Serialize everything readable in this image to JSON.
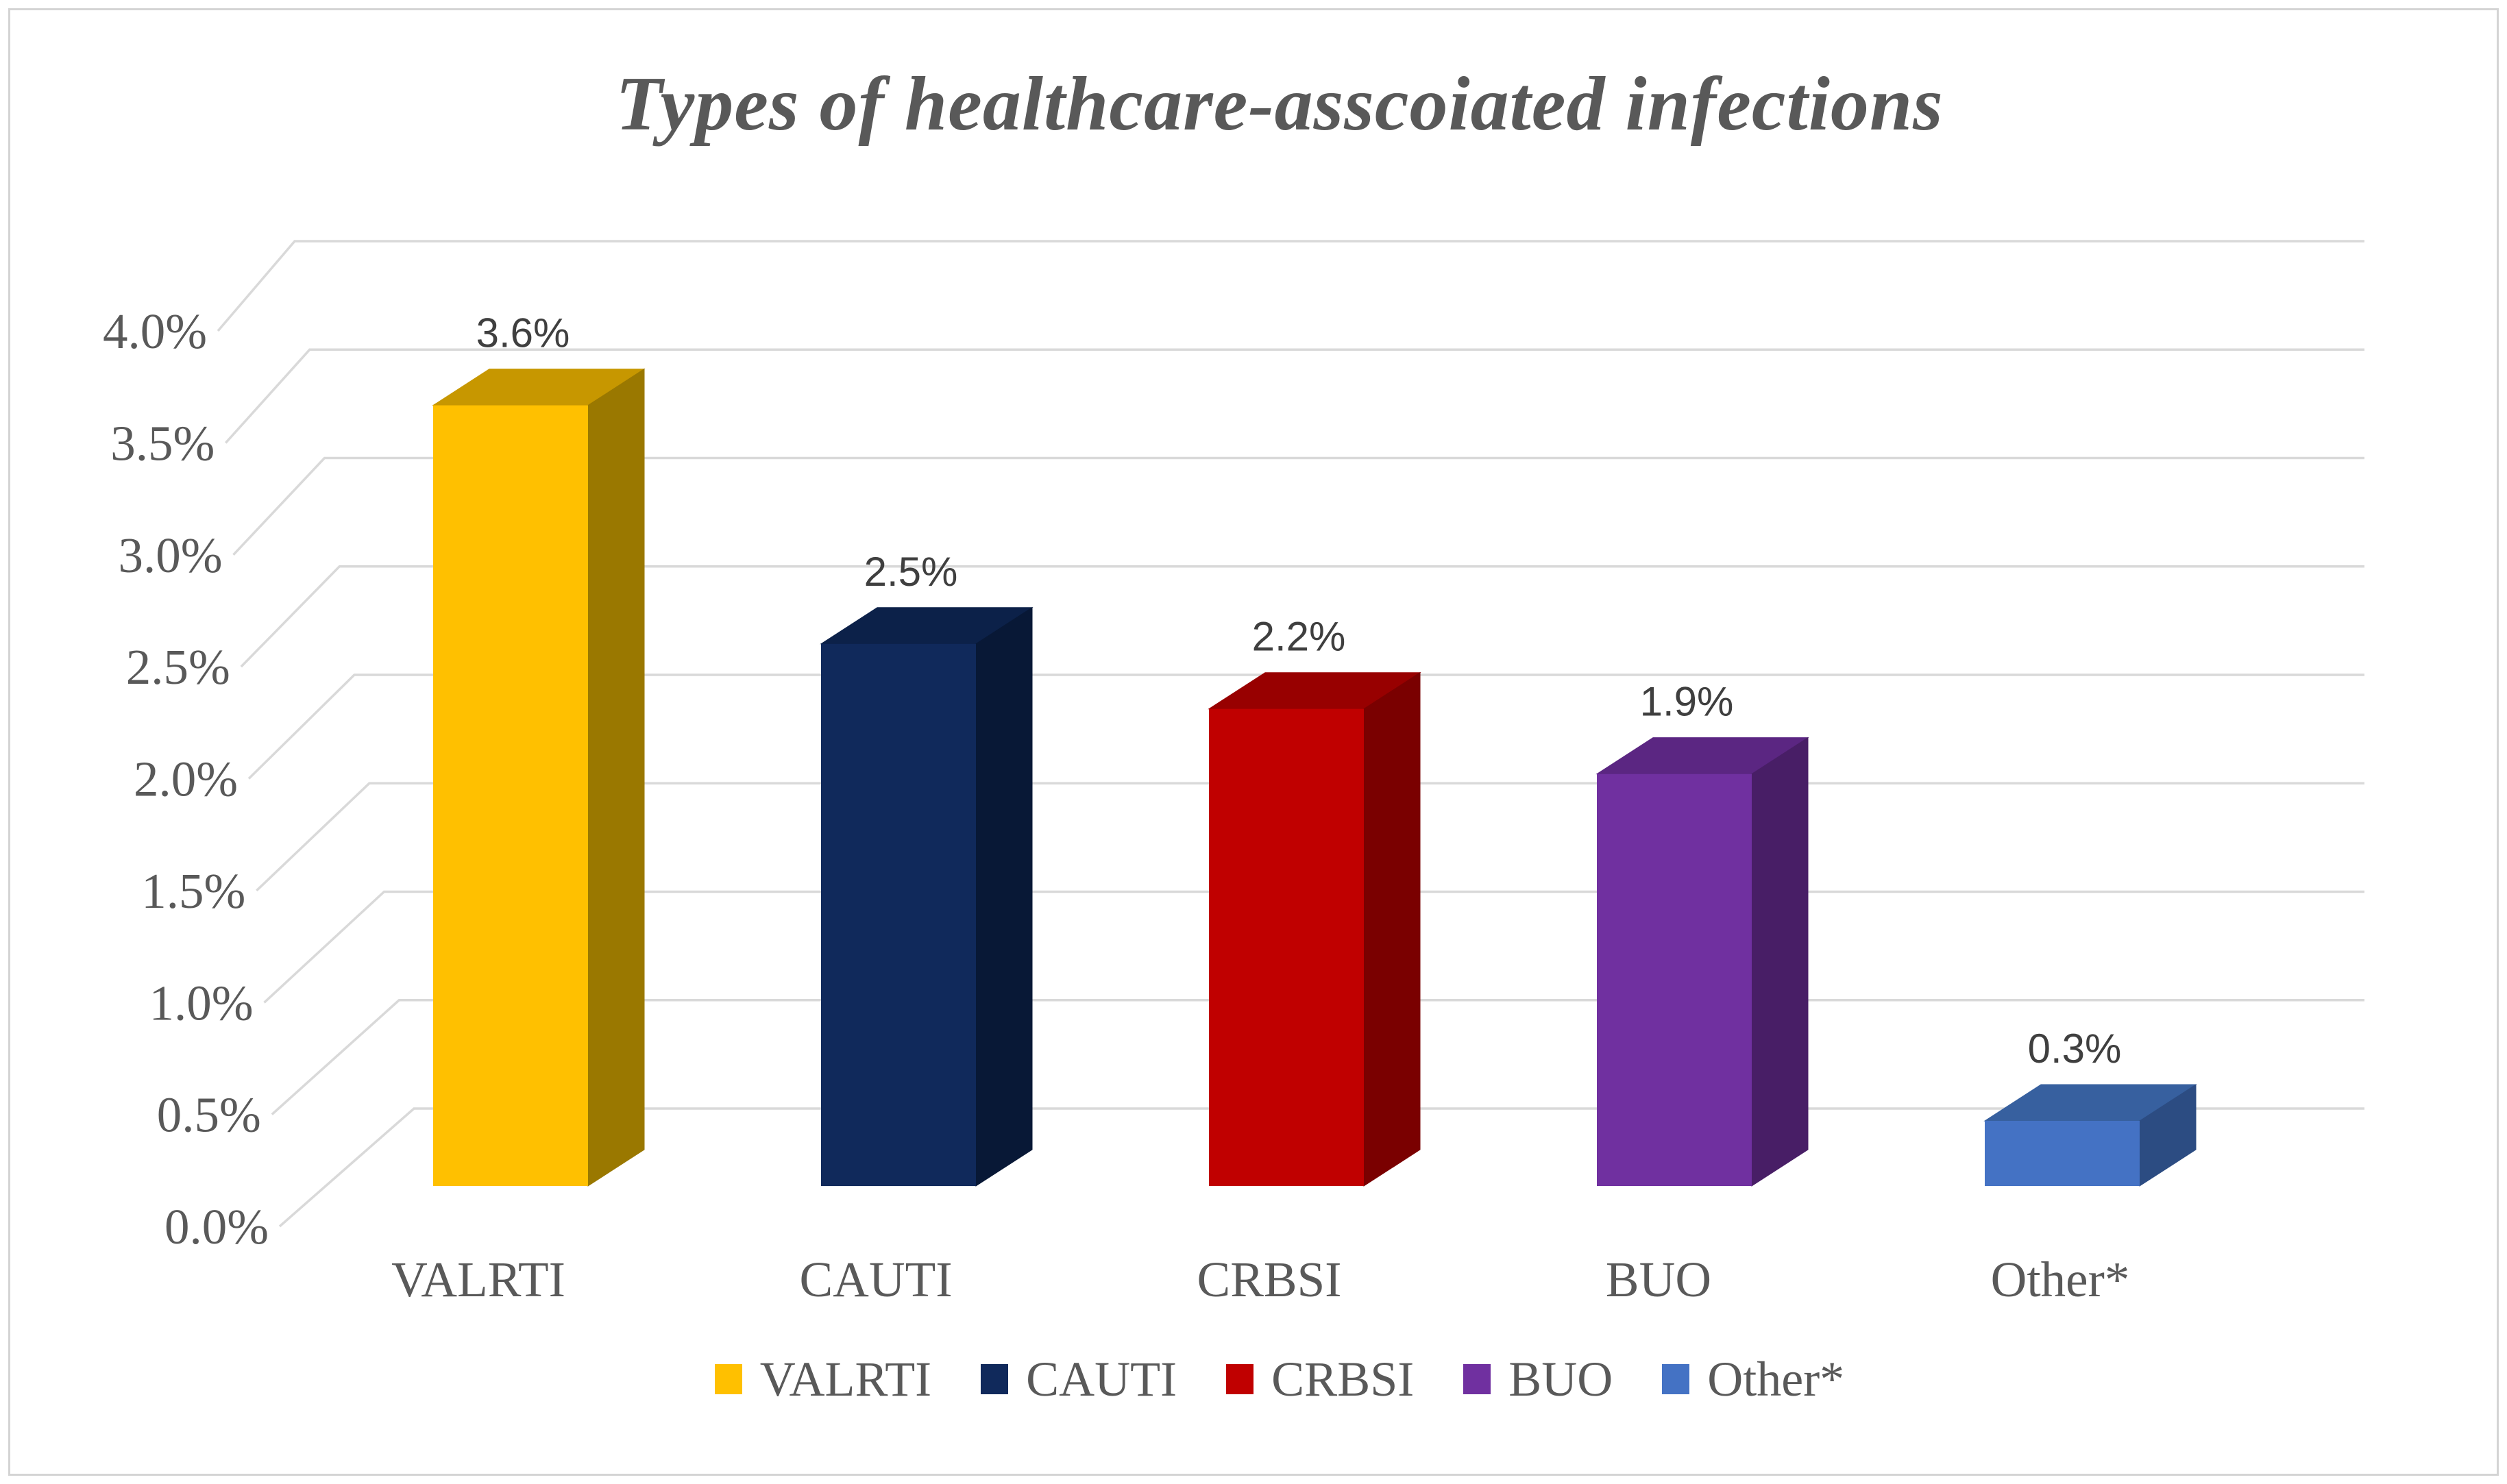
{
  "frame": {
    "background": "#FFFFFF",
    "border_color": "#D4D4D4"
  },
  "chart_data": {
    "type": "bar",
    "projection": "3d-perspective",
    "title": "Types of healthcare-asscoiated infections",
    "categories": [
      "VALRTI",
      "CAUTI",
      "CRBSI",
      "BUO",
      "Other*"
    ],
    "values": [
      3.6,
      2.5,
      2.2,
      1.9,
      0.3
    ],
    "value_labels": [
      "3.6%",
      "2.5%",
      "2.2%",
      "1.9%",
      "0.3%"
    ],
    "series": [
      {
        "name": "VALRTI",
        "value": 3.6,
        "label": "3.6%",
        "front": "#FFC000",
        "top": "#C79700",
        "side": "#9A7800"
      },
      {
        "name": "CAUTI",
        "value": 2.5,
        "label": "2.5%",
        "front": "#10295B",
        "top": "#0C2149",
        "side": "#081836"
      },
      {
        "name": "CRBSI",
        "value": 2.2,
        "label": "2.2%",
        "front": "#C00000",
        "top": "#980000",
        "side": "#7A0000"
      },
      {
        "name": "BUO",
        "value": 1.9,
        "label": "1.9%",
        "front": "#7030A0",
        "top": "#5B2682",
        "side": "#481E66"
      },
      {
        "name": "Other*",
        "value": 0.3,
        "label": "0.3%",
        "front": "#4472C4",
        "top": "#37609F",
        "side": "#2C4C82"
      }
    ],
    "xlabel": "",
    "ylabel": "",
    "ylim": [
      0,
      4
    ],
    "ytick_step": 0.5,
    "ytick_labels": [
      "0.0%",
      "0.5%",
      "1.0%",
      "1.5%",
      "2.0%",
      "2.5%",
      "3.0%",
      "3.5%",
      "4.0%"
    ],
    "grid": true,
    "legend": {
      "position": "bottom",
      "entries": [
        "VALRTI",
        "CAUTI",
        "CRBSI",
        "BUO",
        "Other*"
      ]
    },
    "colors": {
      "axis_text": "#595959",
      "title_text": "#595959",
      "data_label": "#3F3F3F",
      "gridline": "#D9D9D9"
    }
  }
}
